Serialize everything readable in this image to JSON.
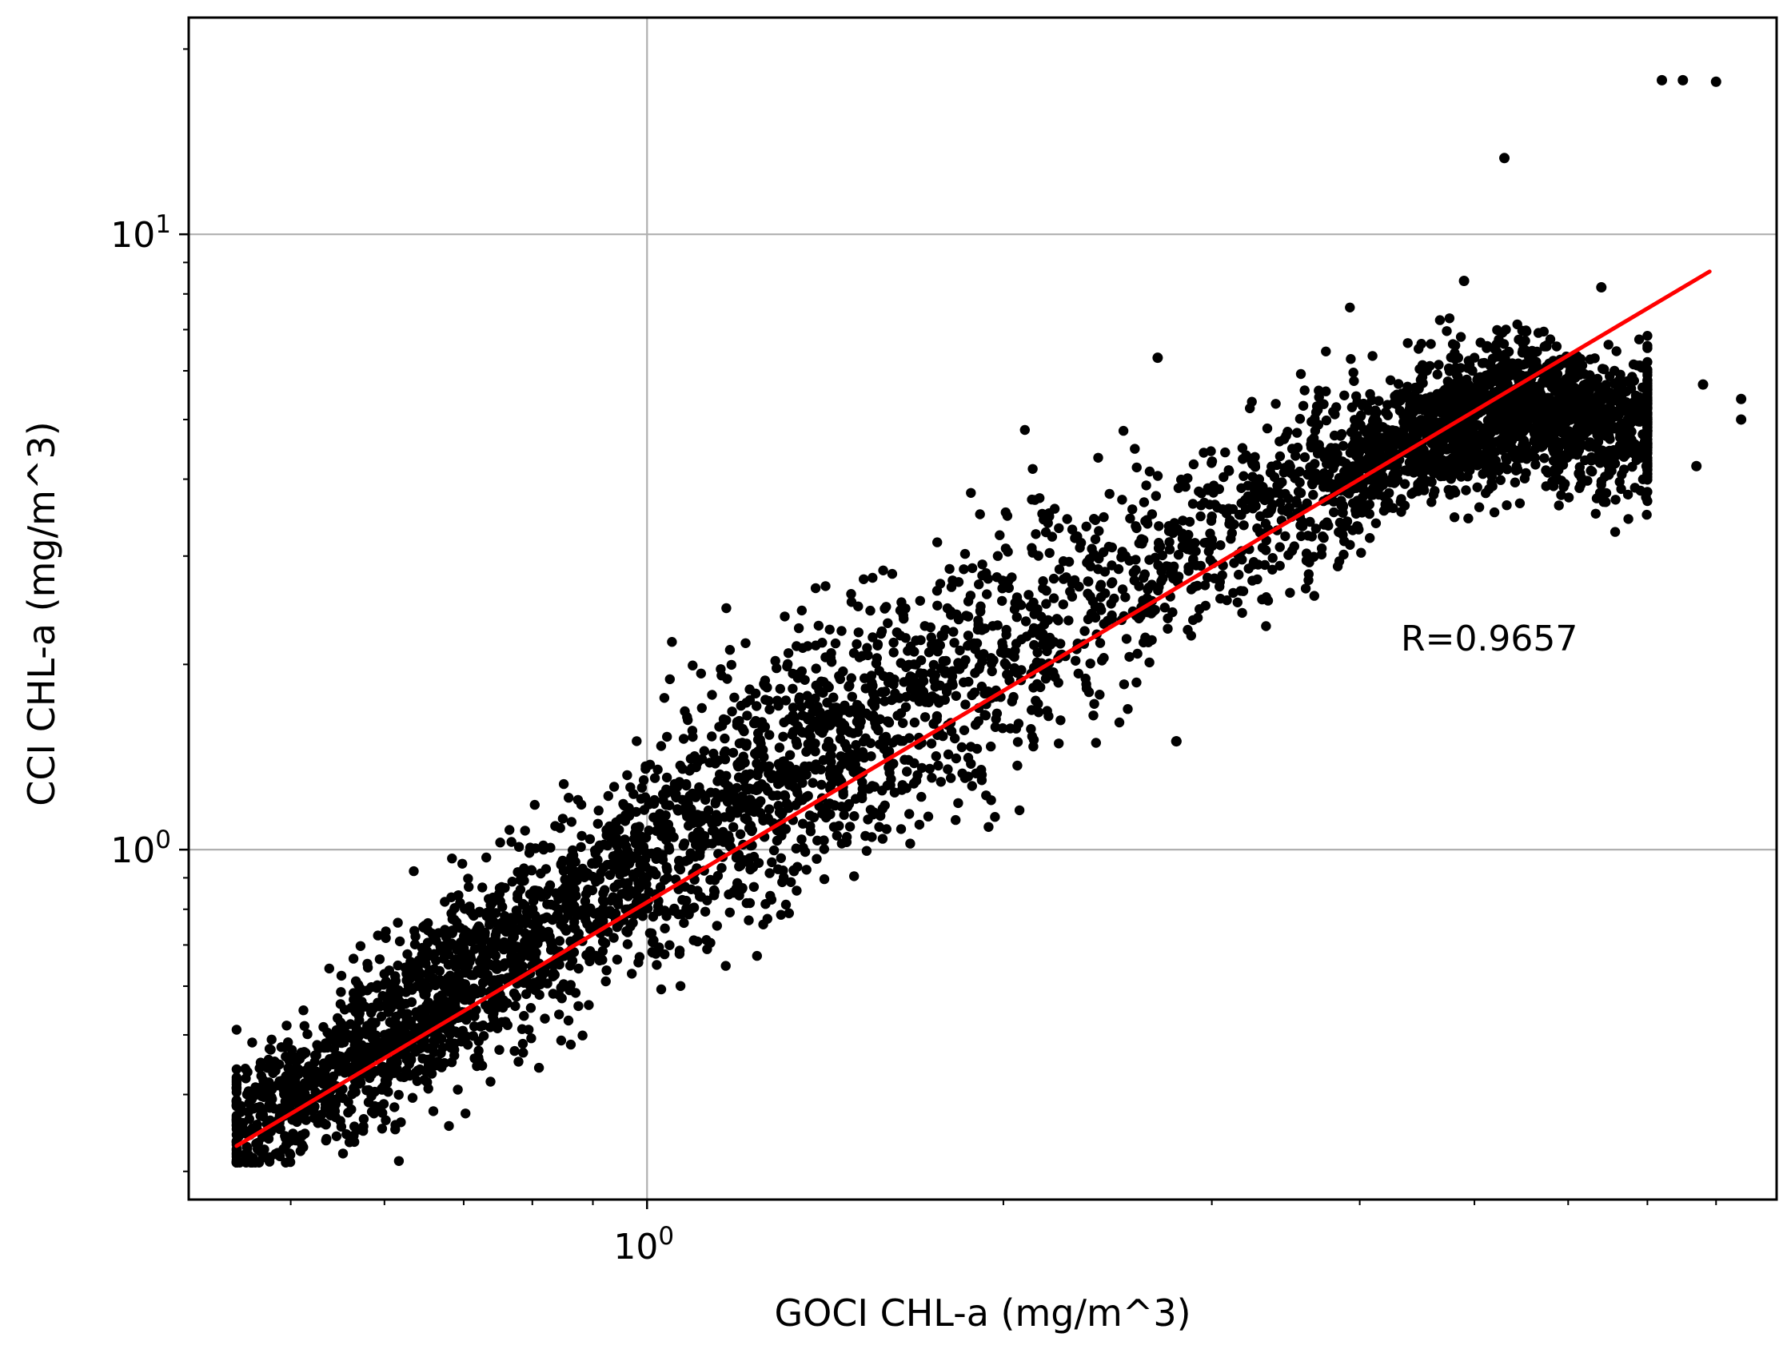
{
  "chart_data": {
    "type": "scatter",
    "title": "",
    "xlabel": "GOCI CHL-a (mg/m^3)",
    "ylabel": "CCI CHL-a (mg/m^3)",
    "xscale": "log",
    "yscale": "log",
    "xlim": [
      0.41,
      9.0
    ],
    "ylim": [
      0.27,
      22.5
    ],
    "grid": "major",
    "x_major_ticks": [
      {
        "value": 1,
        "base": "10",
        "exp": "0"
      }
    ],
    "y_major_ticks": [
      {
        "value": 1,
        "base": "10",
        "exp": "0"
      },
      {
        "value": 10,
        "base": "10",
        "exp": "1"
      }
    ],
    "x_minor_ticks": [
      0.5,
      0.6,
      0.7,
      0.8,
      0.9,
      2,
      3,
      4,
      5,
      6,
      7,
      8
    ],
    "y_minor_ticks": [
      0.3,
      0.4,
      0.5,
      0.6,
      0.7,
      0.8,
      0.9,
      2,
      3,
      4,
      5,
      6,
      7,
      8,
      9,
      20
    ],
    "point_color": "#000000",
    "line_color": "#ff0000",
    "annotation": "R=0.9657",
    "fit_line": {
      "x": [
        0.45,
        7.9
      ],
      "y": [
        0.33,
        8.7
      ]
    },
    "point_count_approx": 5000,
    "cloud_centerline": [
      [
        0.45,
        0.35
      ],
      [
        0.6,
        0.5
      ],
      [
        1.0,
        0.97
      ],
      [
        1.5,
        1.55
      ],
      [
        2.0,
        2.1
      ],
      [
        3.0,
        3.3
      ],
      [
        4.5,
        4.7
      ],
      [
        5.5,
        5.3
      ],
      [
        6.5,
        4.9
      ]
    ],
    "outliers": [
      {
        "x": 7.2,
        "y": 17.8
      },
      {
        "x": 7.5,
        "y": 17.8
      },
      {
        "x": 8.0,
        "y": 17.7
      },
      {
        "x": 5.3,
        "y": 13.3
      },
      {
        "x": 8.4,
        "y": 5.4
      },
      {
        "x": 8.4,
        "y": 5.0
      },
      {
        "x": 7.8,
        "y": 5.7
      },
      {
        "x": 7.7,
        "y": 4.2
      },
      {
        "x": 6.4,
        "y": 8.2
      },
      {
        "x": 4.9,
        "y": 8.4
      },
      {
        "x": 2.7,
        "y": 6.3
      },
      {
        "x": 2.8,
        "y": 1.5
      },
      {
        "x": 2.8,
        "y": 1.5
      }
    ]
  }
}
